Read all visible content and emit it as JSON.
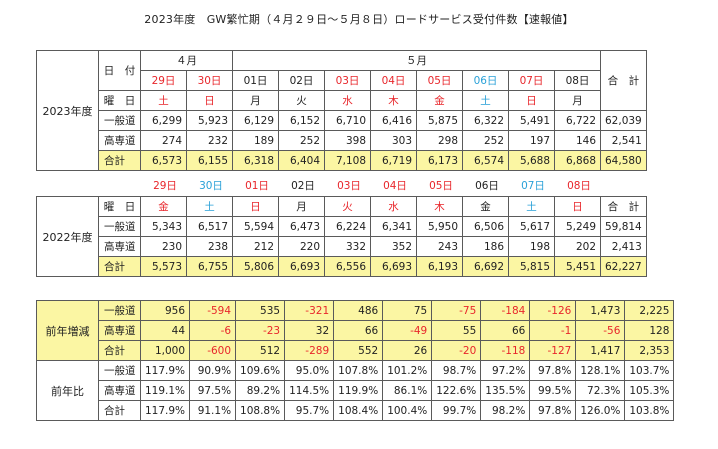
{
  "title": "2023年度　GW繁忙期（４月２９日～５月８日）ロードサービス受付件数【速報値】",
  "colors": {
    "red": "#e8262b",
    "blue": "#2aa1d8",
    "highlight": "#fbf6a3",
    "border": "#5a5a5a"
  },
  "t2023": {
    "section": "2023年度",
    "hdr_hiduke": "日　付",
    "month_apr": "４月",
    "month_may": "５月",
    "total_hdr": "合　計",
    "youbi_label": "曜　日",
    "days": [
      {
        "d": "29日",
        "w": "土",
        "dc": "red",
        "wc": "red"
      },
      {
        "d": "30日",
        "w": "日",
        "dc": "red",
        "wc": "red"
      },
      {
        "d": "01日",
        "w": "月",
        "dc": "",
        "wc": ""
      },
      {
        "d": "02日",
        "w": "火",
        "dc": "",
        "wc": ""
      },
      {
        "d": "03日",
        "w": "水",
        "dc": "red",
        "wc": "red"
      },
      {
        "d": "04日",
        "w": "木",
        "dc": "red",
        "wc": "red"
      },
      {
        "d": "05日",
        "w": "金",
        "dc": "red",
        "wc": "red"
      },
      {
        "d": "06日",
        "w": "土",
        "dc": "blue",
        "wc": "blue"
      },
      {
        "d": "07日",
        "w": "日",
        "dc": "red",
        "wc": "red"
      },
      {
        "d": "08日",
        "w": "月",
        "dc": "",
        "wc": ""
      }
    ],
    "rows": [
      {
        "label": "一般道",
        "values": [
          "6,299",
          "5,923",
          "6,129",
          "6,152",
          "6,710",
          "6,416",
          "5,875",
          "6,322",
          "5,491",
          "6,722"
        ],
        "total": "62,039",
        "hl": false
      },
      {
        "label": "高専道",
        "values": [
          "274",
          "232",
          "189",
          "252",
          "398",
          "303",
          "298",
          "252",
          "197",
          "146"
        ],
        "total": "2,541",
        "hl": false
      },
      {
        "label": "合計",
        "values": [
          "6,573",
          "6,155",
          "6,318",
          "6,404",
          "7,108",
          "6,719",
          "6,173",
          "6,574",
          "5,688",
          "6,868"
        ],
        "total": "64,580",
        "hl": true
      }
    ]
  },
  "t2022": {
    "section": "2022年度",
    "dates": [
      {
        "d": "29日",
        "c": "red"
      },
      {
        "d": "30日",
        "c": "blue"
      },
      {
        "d": "01日",
        "c": "red"
      },
      {
        "d": "02日",
        "c": ""
      },
      {
        "d": "03日",
        "c": "red"
      },
      {
        "d": "04日",
        "c": "red"
      },
      {
        "d": "05日",
        "c": "red"
      },
      {
        "d": "06日",
        "c": ""
      },
      {
        "d": "07日",
        "c": "blue"
      },
      {
        "d": "08日",
        "c": "red"
      }
    ],
    "youbi_label": "曜　日",
    "total_hdr": "合　計",
    "weekdays": [
      {
        "w": "金",
        "c": "red"
      },
      {
        "w": "土",
        "c": "blue"
      },
      {
        "w": "日",
        "c": "red"
      },
      {
        "w": "月",
        "c": ""
      },
      {
        "w": "火",
        "c": "red"
      },
      {
        "w": "水",
        "c": "red"
      },
      {
        "w": "木",
        "c": "red"
      },
      {
        "w": "金",
        "c": ""
      },
      {
        "w": "土",
        "c": "blue"
      },
      {
        "w": "日",
        "c": "red"
      }
    ],
    "rows": [
      {
        "label": "一般道",
        "values": [
          "5,343",
          "6,517",
          "5,594",
          "6,473",
          "6,224",
          "6,341",
          "5,950",
          "6,506",
          "5,617",
          "5,249"
        ],
        "total": "59,814",
        "hl": false
      },
      {
        "label": "高専道",
        "values": [
          "230",
          "238",
          "212",
          "220",
          "332",
          "352",
          "243",
          "186",
          "198",
          "202"
        ],
        "total": "2,413",
        "hl": false
      },
      {
        "label": "合計",
        "values": [
          "5,573",
          "6,755",
          "5,806",
          "6,693",
          "6,556",
          "6,693",
          "6,193",
          "6,692",
          "5,815",
          "5,451"
        ],
        "total": "62,227",
        "hl": true
      }
    ]
  },
  "diff": {
    "section": "前年増減",
    "rows": [
      {
        "label": "一般道",
        "values": [
          "956",
          "-594",
          "535",
          "-321",
          "486",
          "75",
          "-75",
          "-184",
          "-126",
          "1,473"
        ],
        "total": "2,225"
      },
      {
        "label": "高専道",
        "values": [
          "44",
          "-6",
          "-23",
          "32",
          "66",
          "-49",
          "55",
          "66",
          "-1",
          "-56"
        ],
        "total": "128"
      },
      {
        "label": "合計",
        "values": [
          "1,000",
          "-600",
          "512",
          "-289",
          "552",
          "26",
          "-20",
          "-118",
          "-127",
          "1,417"
        ],
        "total": "2,353"
      }
    ]
  },
  "ratio": {
    "section": "前年比",
    "rows": [
      {
        "label": "一般道",
        "values": [
          "117.9%",
          "90.9%",
          "109.6%",
          "95.0%",
          "107.8%",
          "101.2%",
          "98.7%",
          "97.2%",
          "97.8%",
          "128.1%"
        ],
        "total": "103.7%"
      },
      {
        "label": "高専道",
        "values": [
          "119.1%",
          "97.5%",
          "89.2%",
          "114.5%",
          "119.9%",
          "86.1%",
          "122.6%",
          "135.5%",
          "99.5%",
          "72.3%"
        ],
        "total": "105.3%"
      },
      {
        "label": "合計",
        "values": [
          "117.9%",
          "91.1%",
          "108.8%",
          "95.7%",
          "108.4%",
          "100.4%",
          "99.7%",
          "98.2%",
          "97.8%",
          "126.0%"
        ],
        "total": "103.8%"
      }
    ]
  }
}
